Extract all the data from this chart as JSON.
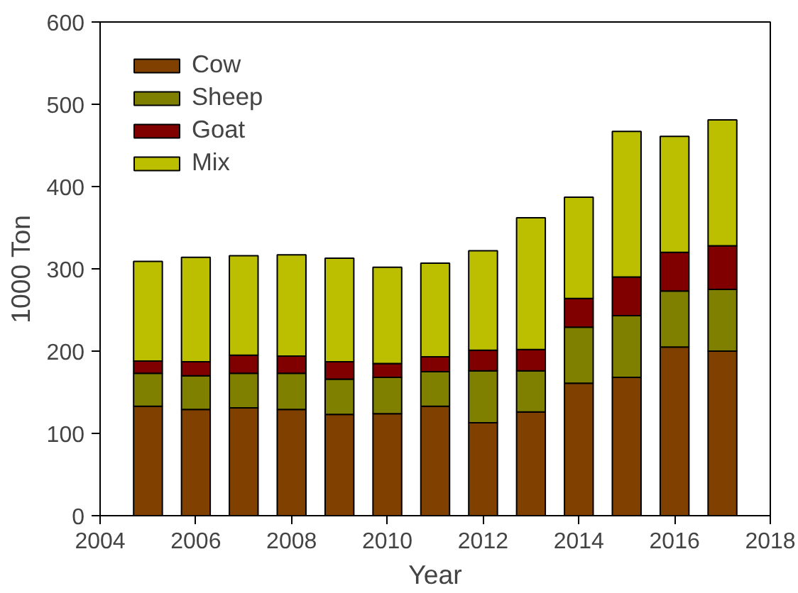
{
  "chart_data": {
    "type": "bar",
    "stacked": true,
    "xlabel": "Year",
    "ylabel": "1000 Ton",
    "x": [
      2005,
      2006,
      2007,
      2008,
      2009,
      2010,
      2011,
      2012,
      2013,
      2014,
      2015,
      2016,
      2017
    ],
    "series": [
      {
        "name": "Cow",
        "color": "#804000",
        "values": [
          133,
          129,
          131,
          129,
          123,
          124,
          133,
          113,
          126,
          161,
          168,
          205,
          200
        ]
      },
      {
        "name": "Sheep",
        "color": "#808000",
        "values": [
          40,
          41,
          42,
          44,
          43,
          44,
          42,
          63,
          50,
          68,
          75,
          68,
          75
        ]
      },
      {
        "name": "Goat",
        "color": "#800000",
        "values": [
          15,
          17,
          22,
          21,
          21,
          17,
          18,
          25,
          26,
          35,
          47,
          47,
          53
        ]
      },
      {
        "name": "Mix",
        "color": "#bbbf00",
        "values": [
          121,
          127,
          121,
          123,
          126,
          117,
          114,
          121,
          160,
          123,
          177,
          141,
          153
        ]
      }
    ],
    "xlim": [
      2004,
      2018
    ],
    "xticks": [
      2004,
      2006,
      2008,
      2010,
      2012,
      2014,
      2016,
      2018
    ],
    "ylim": [
      0,
      600
    ],
    "yticks": [
      0,
      100,
      200,
      300,
      400,
      500,
      600
    ],
    "grid": false,
    "legend": "top left"
  }
}
